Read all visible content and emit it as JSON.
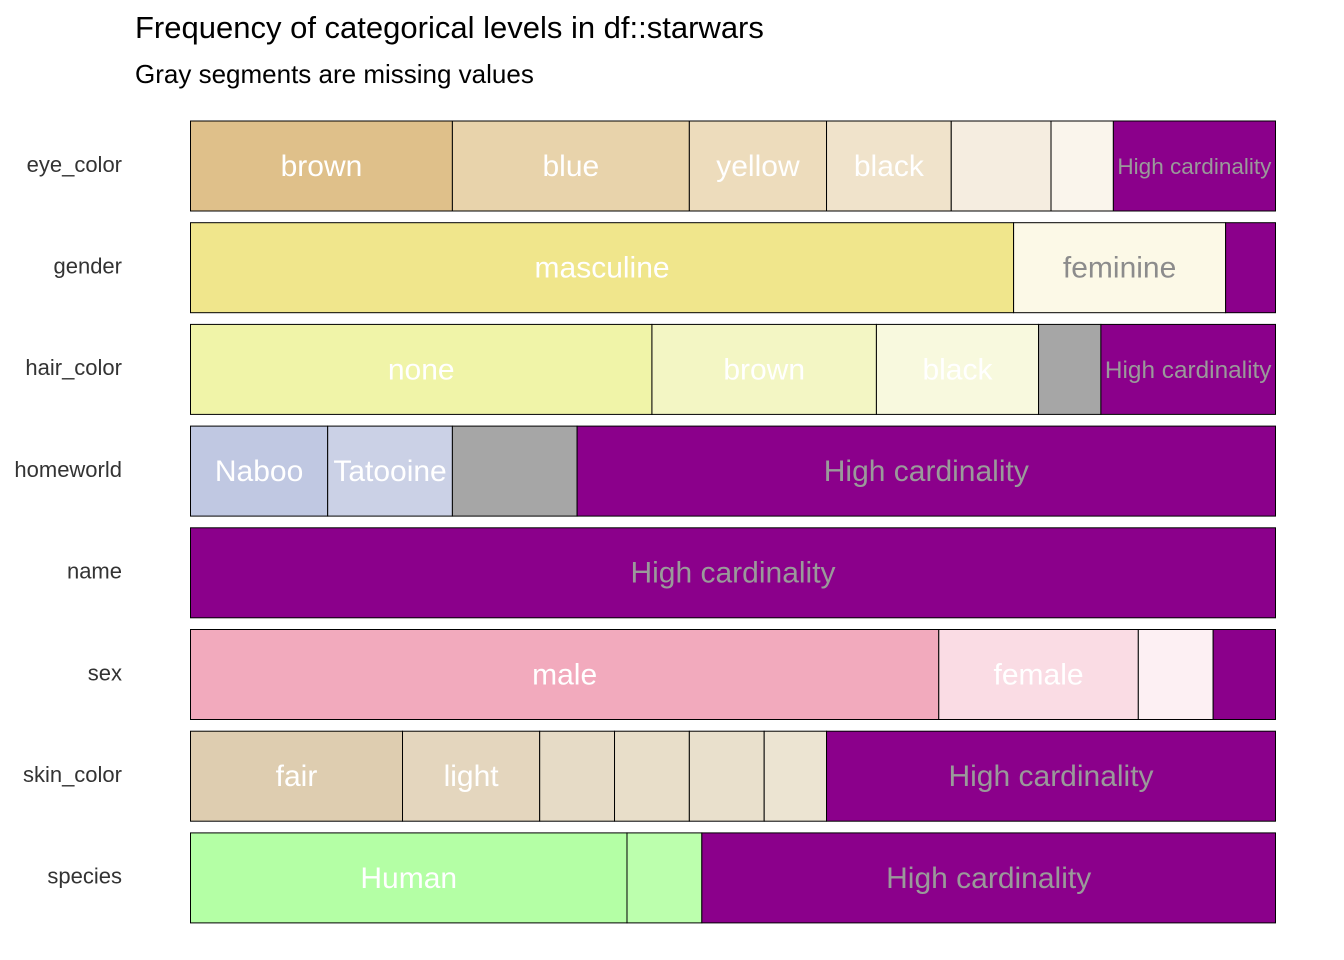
{
  "chart_data": {
    "type": "stacked_bar_horizontal",
    "title": "Frequency of categorical levels in df::starwars",
    "subtitle": "Gray segments are missing values",
    "rows": [
      {
        "name": "eye_color",
        "segments": [
          {
            "label": "brown",
            "value": 21,
            "color": "#dfc08a",
            "label_color": "#ffffff"
          },
          {
            "label": "blue",
            "value": 19,
            "color": "#e8d3ab",
            "label_color": "#ffffff"
          },
          {
            "label": "yellow",
            "value": 11,
            "color": "#eddcbc",
            "label_color": "#ffffff"
          },
          {
            "label": "black",
            "value": 10,
            "color": "#f0e3cb",
            "label_color": "#ffffff"
          },
          {
            "label": null,
            "value": 8,
            "color": "#f5ede0",
            "label_color": "#ffffff"
          },
          {
            "label": null,
            "value": 5,
            "color": "#faf5ec",
            "label_color": "#ffffff"
          },
          {
            "label": "High cardinality",
            "value": 13,
            "color": "#8b008b",
            "label_color": "#9a9a9a"
          }
        ]
      },
      {
        "name": "gender",
        "segments": [
          {
            "label": "masculine",
            "value": 66,
            "color": "#f0e68c",
            "label_color": "#ffffff"
          },
          {
            "label": "feminine",
            "value": 17,
            "color": "#fcf9e7",
            "label_color": "#8c8c8c"
          },
          {
            "label": null,
            "value": 4,
            "color": "#8b008b",
            "label_color": "#9a9a9a"
          }
        ]
      },
      {
        "name": "hair_color",
        "segments": [
          {
            "label": "none",
            "value": 37,
            "color": "#f0f4a8",
            "label_color": "#ffffff"
          },
          {
            "label": "brown",
            "value": 18,
            "color": "#f3f6c4",
            "label_color": "#ffffff"
          },
          {
            "label": "black",
            "value": 13,
            "color": "#f8f9de",
            "label_color": "#ffffff"
          },
          {
            "label": null,
            "value": 5,
            "color": "#a6a6a6",
            "label_color": "#ffffff"
          },
          {
            "label": "High cardinality",
            "value": 14,
            "color": "#8b008b",
            "label_color": "#9a9a9a"
          }
        ]
      },
      {
        "name": "homeworld",
        "segments": [
          {
            "label": "Naboo",
            "value": 11,
            "color": "#c0c8e2",
            "label_color": "#ffffff"
          },
          {
            "label": "Tatooine",
            "value": 10,
            "color": "#cbd1e6",
            "label_color": "#ffffff"
          },
          {
            "label": null,
            "value": 10,
            "color": "#a6a6a6",
            "label_color": "#ffffff"
          },
          {
            "label": "High cardinality",
            "value": 56,
            "color": "#8b008b",
            "label_color": "#9a9a9a"
          }
        ]
      },
      {
        "name": "name",
        "segments": [
          {
            "label": "High cardinality",
            "value": 87,
            "color": "#8b008b",
            "label_color": "#9a9a9a"
          }
        ]
      },
      {
        "name": "sex",
        "segments": [
          {
            "label": "male",
            "value": 60,
            "color": "#f2aabd",
            "label_color": "#ffffff"
          },
          {
            "label": "female",
            "value": 16,
            "color": "#fadce4",
            "label_color": "#ffffff"
          },
          {
            "label": null,
            "value": 6,
            "color": "#fdf0f3",
            "label_color": "#ffffff"
          },
          {
            "label": null,
            "value": 5,
            "color": "#8b008b",
            "label_color": "#9a9a9a"
          }
        ]
      },
      {
        "name": "skin_color",
        "segments": [
          {
            "label": "fair",
            "value": 17,
            "color": "#decdb0",
            "label_color": "#ffffff"
          },
          {
            "label": "light",
            "value": 11,
            "color": "#e4d6be",
            "label_color": "#ffffff"
          },
          {
            "label": null,
            "value": 6,
            "color": "#e6dbc6",
            "label_color": "#ffffff"
          },
          {
            "label": null,
            "value": 6,
            "color": "#e8dec9",
            "label_color": "#ffffff"
          },
          {
            "label": null,
            "value": 6,
            "color": "#e9e0cc",
            "label_color": "#ffffff"
          },
          {
            "label": null,
            "value": 5,
            "color": "#ece4d2",
            "label_color": "#ffffff"
          },
          {
            "label": "High cardinality",
            "value": 36,
            "color": "#8b008b",
            "label_color": "#9a9a9a"
          }
        ]
      },
      {
        "name": "species",
        "segments": [
          {
            "label": "Human",
            "value": 35,
            "color": "#b4ffa5",
            "label_color": "#ffffff"
          },
          {
            "label": null,
            "value": 6,
            "color": "#bcffad",
            "label_color": "#ffffff"
          },
          {
            "label": "High cardinality",
            "value": 46,
            "color": "#8b008b",
            "label_color": "#9a9a9a"
          }
        ]
      }
    ]
  }
}
